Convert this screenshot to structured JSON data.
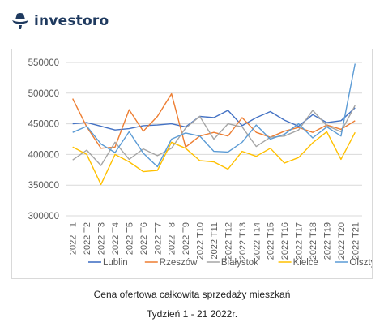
{
  "brand": {
    "name": "investoro",
    "logo_icon": "fedora-hat-icon",
    "color": "#1f3a5f"
  },
  "caption": {
    "line1": "Cena ofertowa całkowita sprzedaży mieszkań",
    "line2": "Tydzień 1 - 21 2022r."
  },
  "chart_data": {
    "type": "line",
    "x": [
      "2022 T1",
      "2022 T2",
      "2022 T3",
      "2022 T4",
      "2022 T5",
      "2022 T6",
      "2022 T7",
      "2022 T8",
      "2022 T9",
      "2022 T10",
      "2022 T11",
      "2022 T12",
      "2022 T13",
      "2022 T14",
      "2022 T15",
      "2022 T16",
      "2022 T17",
      "2022 T18",
      "2022 T19",
      "2022 T20",
      "2022 T21"
    ],
    "yticks": [
      "300000",
      "350000",
      "400000",
      "450000",
      "500000",
      "550000"
    ],
    "ylim": [
      300000,
      550000
    ],
    "grid": "horizontal",
    "legend_position": "bottom",
    "series": [
      {
        "name": "Lublin",
        "color": "#4472c4",
        "values": [
          450000,
          452000,
          446000,
          440000,
          442000,
          447000,
          448000,
          450000,
          445000,
          462000,
          460000,
          472000,
          447000,
          460000,
          470000,
          456000,
          446000,
          465000,
          452000,
          455000,
          476000
        ]
      },
      {
        "name": "Rzeszów",
        "color": "#ed7d31",
        "values": [
          491000,
          445000,
          410000,
          412000,
          473000,
          438000,
          462000,
          499000,
          412000,
          430000,
          436000,
          430000,
          460000,
          436000,
          428000,
          438000,
          444000,
          436000,
          448000,
          441000,
          455000
        ]
      },
      {
        "name": "Białystok",
        "color": "#a5a5a5",
        "values": [
          391000,
          407000,
          382000,
          420000,
          392000,
          409000,
          398000,
          410000,
          443000,
          462000,
          425000,
          450000,
          445000,
          413000,
          428000,
          430000,
          440000,
          472000,
          447000,
          437000,
          480000
        ]
      },
      {
        "name": "Kielce",
        "color": "#ffc000",
        "values": [
          412000,
          400000,
          351000,
          400000,
          388000,
          372000,
          374000,
          420000,
          410000,
          390000,
          388000,
          376000,
          405000,
          397000,
          410000,
          386000,
          395000,
          419000,
          437000,
          392000,
          436000
        ]
      },
      {
        "name": "Olsztyn",
        "color": "#5b9bd5",
        "values": [
          436000,
          446000,
          417000,
          403000,
          437000,
          402000,
          380000,
          425000,
          435000,
          430000,
          405000,
          404000,
          420000,
          448000,
          425000,
          433000,
          450000,
          427000,
          445000,
          430000,
          548000
        ]
      }
    ]
  }
}
